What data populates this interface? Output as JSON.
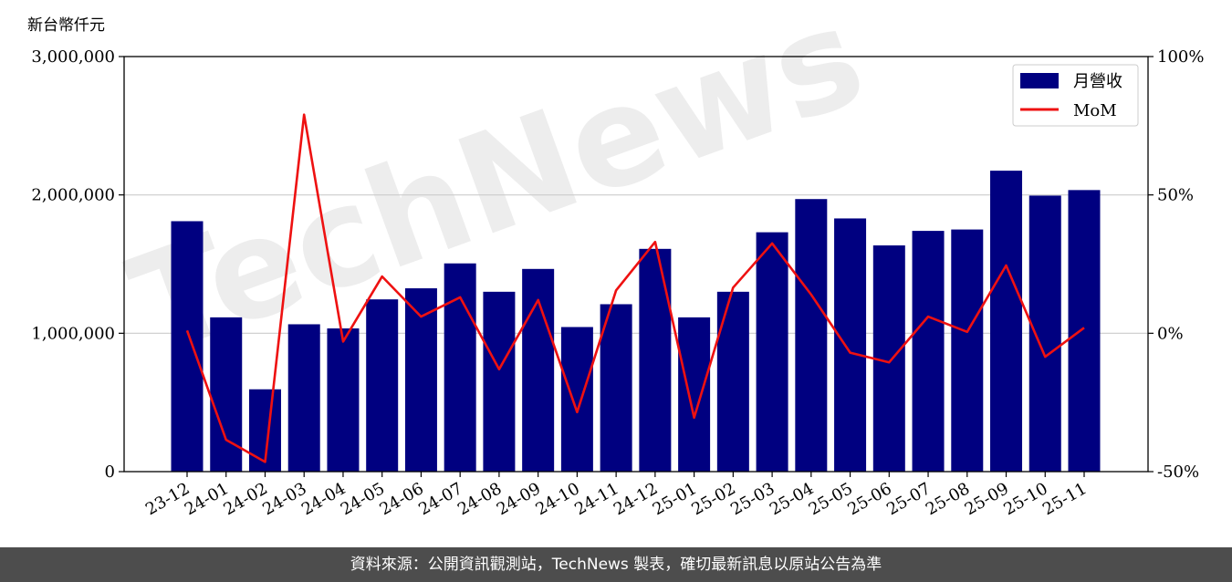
{
  "chart_data": {
    "type": "bar",
    "unit_label": "新台幣仟元",
    "categories": [
      "23-12",
      "24-01",
      "24-02",
      "24-03",
      "24-04",
      "24-05",
      "24-06",
      "24-07",
      "24-08",
      "24-09",
      "24-10",
      "24-11",
      "24-12",
      "25-01",
      "25-02",
      "25-03",
      "25-04",
      "25-05",
      "25-06",
      "25-07",
      "25-08",
      "25-09",
      "25-10",
      "25-11"
    ],
    "series": [
      {
        "name": "月營收",
        "type": "bar",
        "axis": "left",
        "color": "#000080",
        "values": [
          1810000,
          1115000,
          595000,
          1065000,
          1035000,
          1245000,
          1325000,
          1505000,
          1300000,
          1465000,
          1045000,
          1210000,
          1610000,
          1115000,
          1300000,
          1730000,
          1970000,
          1830000,
          1635000,
          1740000,
          1750000,
          2175000,
          1995000,
          2035000
        ]
      },
      {
        "name": "MoM",
        "type": "line",
        "axis": "right",
        "color": "#ee1111",
        "values": [
          1.0,
          -38.5,
          -46.5,
          79.0,
          -3.0,
          20.5,
          6.0,
          13.0,
          -13.0,
          12.0,
          -28.5,
          15.5,
          33.0,
          -30.5,
          16.5,
          32.5,
          14.0,
          -7.0,
          -10.5,
          6.0,
          0.5,
          24.5,
          -8.5,
          2.0
        ]
      }
    ],
    "left_axis": {
      "ylim": [
        0,
        3000000
      ],
      "ticks": [
        0,
        1000000,
        2000000,
        3000000
      ],
      "tick_labels": [
        "0",
        "1,000,000",
        "2,000,000",
        "3,000,000"
      ]
    },
    "right_axis": {
      "ylim": [
        -50,
        100
      ],
      "ticks": [
        -50,
        0,
        50,
        100
      ],
      "tick_labels": [
        "-50%",
        "0%",
        "50%",
        "100%"
      ]
    },
    "grid": "horizontal",
    "legend": "top-right",
    "watermark": "TechNews"
  },
  "footer": {
    "source_text": "資料來源：公開資訊觀測站，TechNews 製表，確切最新訊息以原站公告為準"
  }
}
